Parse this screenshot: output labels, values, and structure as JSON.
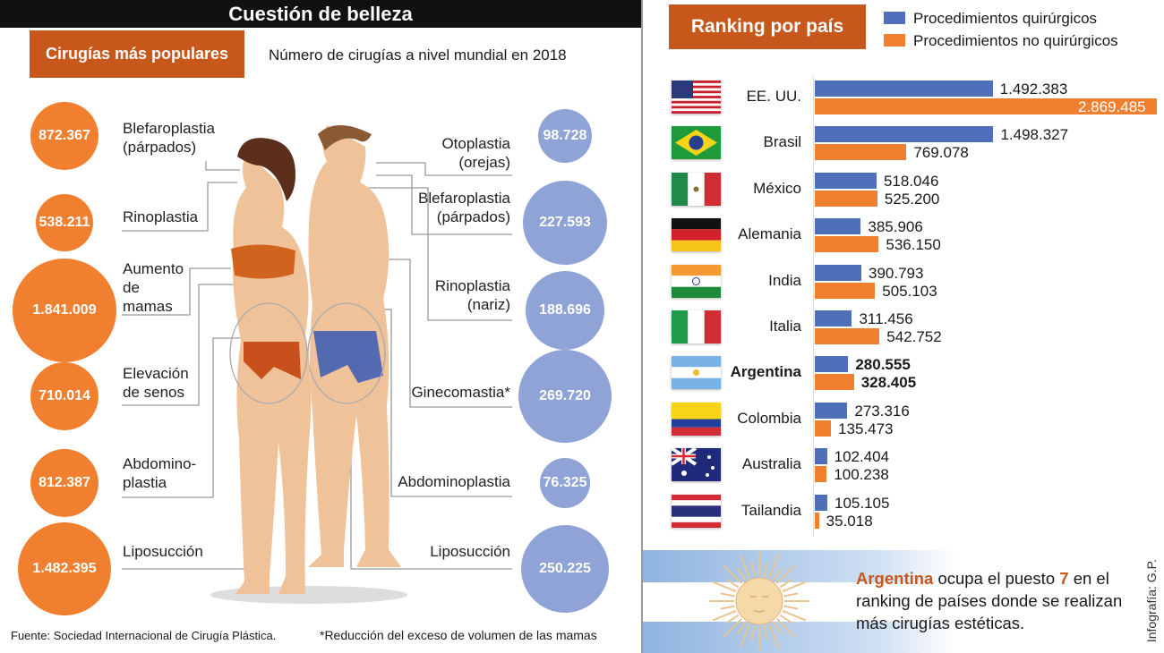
{
  "left": {
    "title": "Cuestión de belleza",
    "subtitle": "Cirugías más populares",
    "description": "Número de cirugías a nivel mundial en 2018",
    "women": [
      {
        "label": [
          "Blefaroplastia",
          "(párpados)"
        ],
        "value": "872.367"
      },
      {
        "label": [
          "Rinoplastia"
        ],
        "value": "538.211"
      },
      {
        "label": [
          "Aumento",
          "de",
          "mamas"
        ],
        "value": "1.841.009"
      },
      {
        "label": [
          "Elevación",
          "de senos"
        ],
        "value": "710.014"
      },
      {
        "label": [
          "Abdomino-",
          "plastia"
        ],
        "value": "812.387"
      },
      {
        "label": [
          "Liposucción"
        ],
        "value": "1.482.395"
      }
    ],
    "men": [
      {
        "label": [
          "Otoplastia",
          "(orejas)"
        ],
        "value": "98.728"
      },
      {
        "label": [
          "Blefaroplastia",
          "(párpados)"
        ],
        "value": "227.593"
      },
      {
        "label": [
          "Rinoplastia",
          "(nariz)"
        ],
        "value": "188.696"
      },
      {
        "label": [
          "Ginecomastia*"
        ],
        "value": "269.720"
      },
      {
        "label": [
          "Abdominoplastia"
        ],
        "value": "76.325"
      },
      {
        "label": [
          "Liposucción"
        ],
        "value": "250.225"
      }
    ],
    "source": "Fuente: Sociedad Internacional de Cirugía Plástica.",
    "footnote": "*Reducción del exceso de volumen de las mamas"
  },
  "colors": {
    "orange": "#f08030",
    "blue": "#4f6fb8",
    "header_orange": "#c8571c",
    "circle_blue": "#8fa3d6"
  },
  "chart_data": {
    "type": "bar",
    "orientation": "horizontal",
    "title": "Ranking por país",
    "categories": [
      "EE. UU.",
      "Brasil",
      "México",
      "Alemania",
      "India",
      "Italia",
      "Argentina",
      "Colombia",
      "Australia",
      "Tailandia"
    ],
    "flags": [
      "usa",
      "brazil",
      "mexico",
      "germany",
      "india",
      "italy",
      "argentina",
      "colombia",
      "australia",
      "thailand"
    ],
    "series": [
      {
        "name": "Procedimientos quirúrgicos",
        "color": "#4f6fb8",
        "values": [
          1492383,
          1498327,
          518046,
          385906,
          390793,
          311456,
          280555,
          273316,
          102404,
          105105
        ],
        "labels": [
          "1.492.383",
          "1.498.327",
          "518.046",
          "385.906",
          "390.793",
          "311.456",
          "280.555",
          "273.316",
          "102.404",
          "105.105"
        ]
      },
      {
        "name": "Procedimientos no quirúrgicos",
        "color": "#f08030",
        "values": [
          2869485,
          769078,
          525200,
          536150,
          505103,
          542752,
          328405,
          135473,
          100238,
          35018
        ],
        "labels": [
          "2.869.485",
          "769.078",
          "525.200",
          "536.150",
          "505.103",
          "542.752",
          "328.405",
          "135.473",
          "100.238",
          "35.018"
        ]
      }
    ],
    "highlight": "Argentina",
    "legend": "top"
  },
  "note": {
    "country": "Argentina",
    "t1": " ocupa el puesto ",
    "rank": "7",
    "t2": " en el ranking de países donde se realizan más cirugías estéticas."
  },
  "credit": "Infografía: G.P."
}
